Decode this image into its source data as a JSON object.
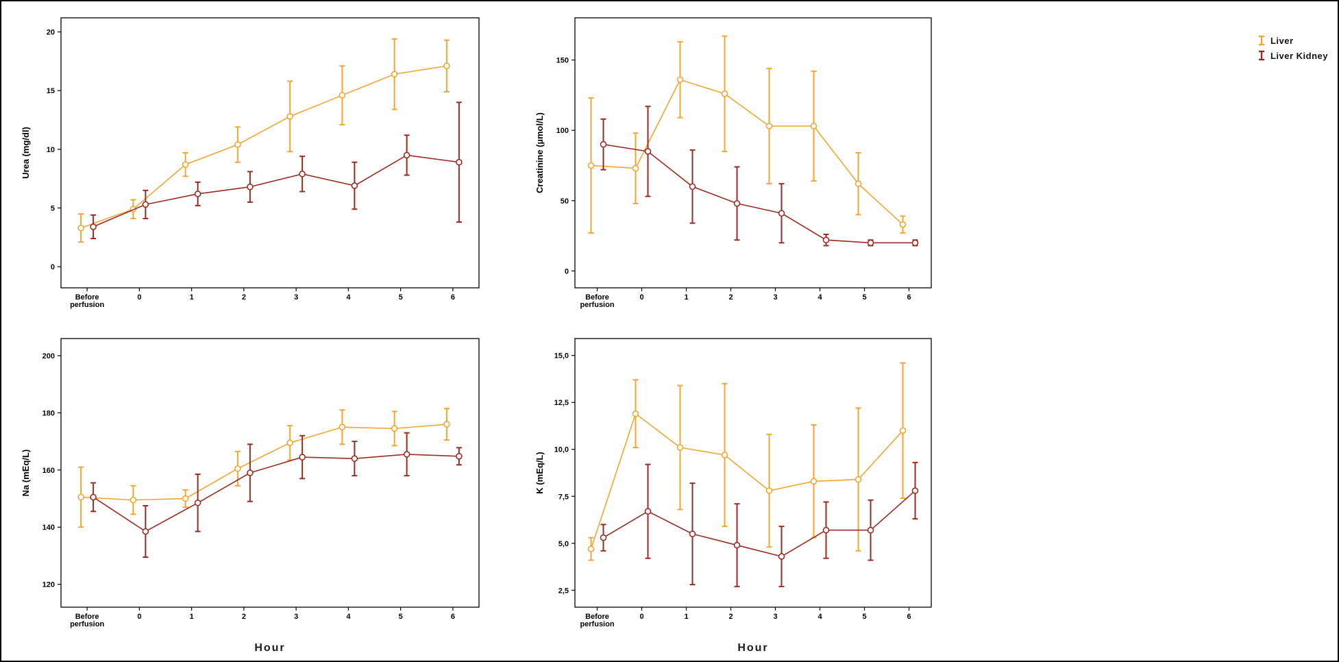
{
  "legend": {
    "items": [
      {
        "label": "Liver",
        "color": "#F4A52F"
      },
      {
        "label": "Liver Kidney",
        "color": "#9B2A23"
      }
    ]
  },
  "chart_data": [
    {
      "id": "urea",
      "type": "line",
      "title": "",
      "ylabel": "Urea (mg/dl)",
      "xlabel": "",
      "categories": [
        "Before\nperfusion",
        "0",
        "1",
        "2",
        "3",
        "4",
        "5",
        "6"
      ],
      "yticks": [
        0,
        5,
        10,
        15,
        20
      ],
      "ytick_labels": [
        "0",
        "5",
        "10",
        "15",
        "20"
      ],
      "ylim": [
        -1.8,
        21.2
      ],
      "error_bars": true,
      "grid": false,
      "series": [
        {
          "name": "Liver",
          "color": "#F4A52F",
          "values": [
            3.3,
            4.9,
            8.7,
            10.4,
            12.8,
            14.6,
            16.4,
            17.1
          ],
          "err": [
            1.2,
            0.8,
            1.0,
            1.5,
            3.0,
            2.5,
            3.0,
            2.2
          ]
        },
        {
          "name": "Liver Kidney",
          "color": "#9B2A23",
          "values": [
            3.4,
            5.3,
            6.2,
            6.8,
            7.9,
            6.9,
            9.5,
            8.9
          ],
          "err": [
            1.0,
            1.2,
            1.0,
            1.3,
            1.5,
            2.0,
            1.7,
            5.1
          ]
        }
      ]
    },
    {
      "id": "creatinine",
      "type": "line",
      "title": "",
      "ylabel": "Creatinine (µmol/L)",
      "xlabel": "",
      "categories": [
        "Before\nperfusion",
        "0",
        "1",
        "2",
        "3",
        "4",
        "5",
        "6"
      ],
      "yticks": [
        0,
        50,
        100,
        150
      ],
      "ytick_labels": [
        "0",
        "50",
        "100",
        "150"
      ],
      "ylim": [
        -12,
        180
      ],
      "error_bars": true,
      "grid": false,
      "series": [
        {
          "name": "Liver",
          "color": "#F4A52F",
          "values": [
            75,
            73,
            136,
            126,
            103,
            103,
            62,
            33
          ],
          "err": [
            48,
            25,
            27,
            41,
            41,
            39,
            22,
            6
          ]
        },
        {
          "name": "Liver Kidney",
          "color": "#9B2A23",
          "values": [
            90,
            85,
            60,
            48,
            41,
            22,
            20,
            20
          ],
          "err": [
            18,
            32,
            26,
            26,
            21,
            4,
            2,
            2
          ]
        }
      ]
    },
    {
      "id": "na",
      "type": "line",
      "title": "",
      "ylabel": "Na (mEq/L)",
      "xlabel": "Hour",
      "categories": [
        "Before\nperfusion",
        "0",
        "1",
        "2",
        "3",
        "4",
        "5",
        "6"
      ],
      "yticks": [
        120,
        140,
        160,
        180,
        200
      ],
      "ytick_labels": [
        "120",
        "140",
        "160",
        "180",
        "200"
      ],
      "ylim": [
        112,
        206
      ],
      "error_bars": true,
      "grid": false,
      "series": [
        {
          "name": "Liver",
          "color": "#F4A52F",
          "values": [
            150.5,
            149.5,
            150.0,
            160.5,
            169.5,
            175.0,
            174.5,
            176.0
          ],
          "err": [
            10.5,
            5.0,
            3.0,
            6.0,
            6.0,
            6.0,
            6.0,
            5.5
          ]
        },
        {
          "name": "Liver Kidney",
          "color": "#9B2A23",
          "values": [
            150.5,
            138.5,
            148.5,
            159.0,
            164.5,
            164.0,
            165.5,
            164.8
          ],
          "err": [
            5.0,
            9.0,
            10.0,
            10.0,
            7.5,
            6.0,
            7.5,
            3.0
          ]
        }
      ]
    },
    {
      "id": "k",
      "type": "line",
      "title": "",
      "ylabel": "K (mEq/L)",
      "xlabel": "Hour",
      "categories": [
        "Before\nperfusion",
        "0",
        "1",
        "2",
        "3",
        "4",
        "5",
        "6"
      ],
      "yticks": [
        2.5,
        5.0,
        7.5,
        10.0,
        12.5,
        15.0
      ],
      "ytick_labels": [
        "2,5",
        "5,0",
        "7,5",
        "10,0",
        "12,5",
        "15,0"
      ],
      "ylim": [
        1.6,
        15.9
      ],
      "error_bars": true,
      "grid": false,
      "series": [
        {
          "name": "Liver",
          "color": "#F4A52F",
          "values": [
            4.7,
            11.9,
            10.1,
            9.7,
            7.8,
            8.3,
            8.4,
            11.0
          ],
          "err": [
            0.6,
            1.8,
            3.3,
            3.8,
            3.0,
            3.0,
            3.8,
            3.6
          ]
        },
        {
          "name": "Liver Kidney",
          "color": "#9B2A23",
          "values": [
            5.3,
            6.7,
            5.5,
            4.9,
            4.3,
            5.7,
            5.7,
            7.8
          ],
          "err": [
            0.7,
            2.5,
            2.7,
            2.2,
            1.6,
            1.5,
            1.6,
            1.5
          ]
        }
      ]
    }
  ]
}
